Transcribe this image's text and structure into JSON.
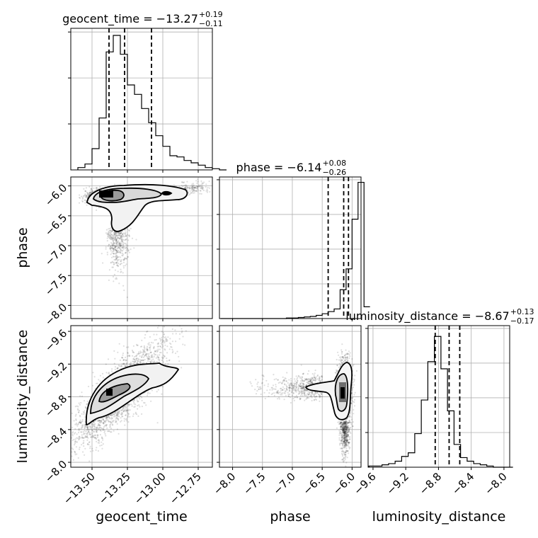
{
  "chart_data": {
    "type": "corner",
    "parameters": [
      "geocent_time",
      "phase",
      "luminosity_distance"
    ],
    "axis_labels": {
      "x": [
        "geocent_time",
        "phase",
        "luminosity_distance"
      ],
      "y": [
        "phase",
        "luminosity_distance"
      ]
    },
    "titles": [
      {
        "prefix": "geocent_time = ",
        "value": "−13.27",
        "plus": "+0.19",
        "minus": "−0.11"
      },
      {
        "prefix": "phase = ",
        "value": "−6.14",
        "plus": "+0.08",
        "minus": "−0.26"
      },
      {
        "prefix": "luminosity_distance = ",
        "value": "−8.67",
        "plus": "+0.13",
        "minus": "−0.17"
      }
    ],
    "ranges": {
      "geocent_time": [
        -13.65,
        -12.65
      ],
      "phase": [
        -8.22,
        -5.85
      ],
      "luminosity_distance": [
        -9.66,
        -7.93
      ]
    },
    "ticks": {
      "geocent_time": [
        -13.5,
        -13.25,
        -13.0,
        -12.75
      ],
      "phase_x": [
        -8.0,
        -7.5,
        -7.0,
        -6.5,
        -6.0
      ],
      "phase_y": [
        -6.0,
        -6.5,
        -7.0,
        -7.5,
        -8.0
      ],
      "luminosity_distance": [
        -9.6,
        -9.2,
        -8.8,
        -8.4,
        -8.0
      ]
    },
    "tick_labels": {
      "geocent_time": [
        "−13.50",
        "−13.25",
        "−13.00",
        "−12.75"
      ],
      "phase_x": [
        "−8.0",
        "−7.5",
        "−7.0",
        "−6.5",
        "−6.0"
      ],
      "phase_y": [
        "−6.0",
        "−6.5",
        "−7.0",
        "−7.5",
        "−8.0"
      ],
      "luminosity_distance_x": [
        "−9.6",
        "−9.2",
        "−8.8",
        "−8.4",
        "−8.0"
      ],
      "luminosity_distance_y": [
        "−8.0",
        "−8.4",
        "−8.8",
        "−9.2",
        "−9.6"
      ]
    },
    "quantiles": {
      "geocent_time": [
        -13.38,
        -13.27,
        -13.08
      ],
      "phase": [
        -6.4,
        -6.14,
        -6.06
      ],
      "luminosity_distance": [
        -8.84,
        -8.67,
        -8.54
      ]
    },
    "histograms": {
      "geocent_time": {
        "edges_start": -13.6,
        "bin_width": 0.05,
        "counts": [
          2,
          5,
          18,
          44,
          100,
          114,
          98,
          72,
          64,
          52,
          40,
          29,
          20,
          12,
          11,
          8,
          6,
          4,
          2,
          1,
          0
        ],
        "ymax": 120
      },
      "phase": {
        "edges_start": -8.2,
        "bin_width": 0.1,
        "counts": [
          0,
          0,
          0,
          0,
          0,
          0,
          0,
          0,
          0,
          0,
          0,
          1,
          1,
          2,
          3,
          4,
          6,
          9,
          13,
          18,
          54,
          93,
          186,
          255,
          22
        ],
        "ymax": 265
      },
      "luminosity_distance": {
        "edges_start": -9.65,
        "bin_width": 0.08,
        "counts": [
          1,
          1,
          2,
          3,
          5,
          9,
          12,
          28,
          56,
          88,
          109,
          82,
          47,
          19,
          8,
          5,
          3,
          2,
          1,
          0,
          0,
          0
        ],
        "ymax": 118
      }
    },
    "grid": true
  }
}
